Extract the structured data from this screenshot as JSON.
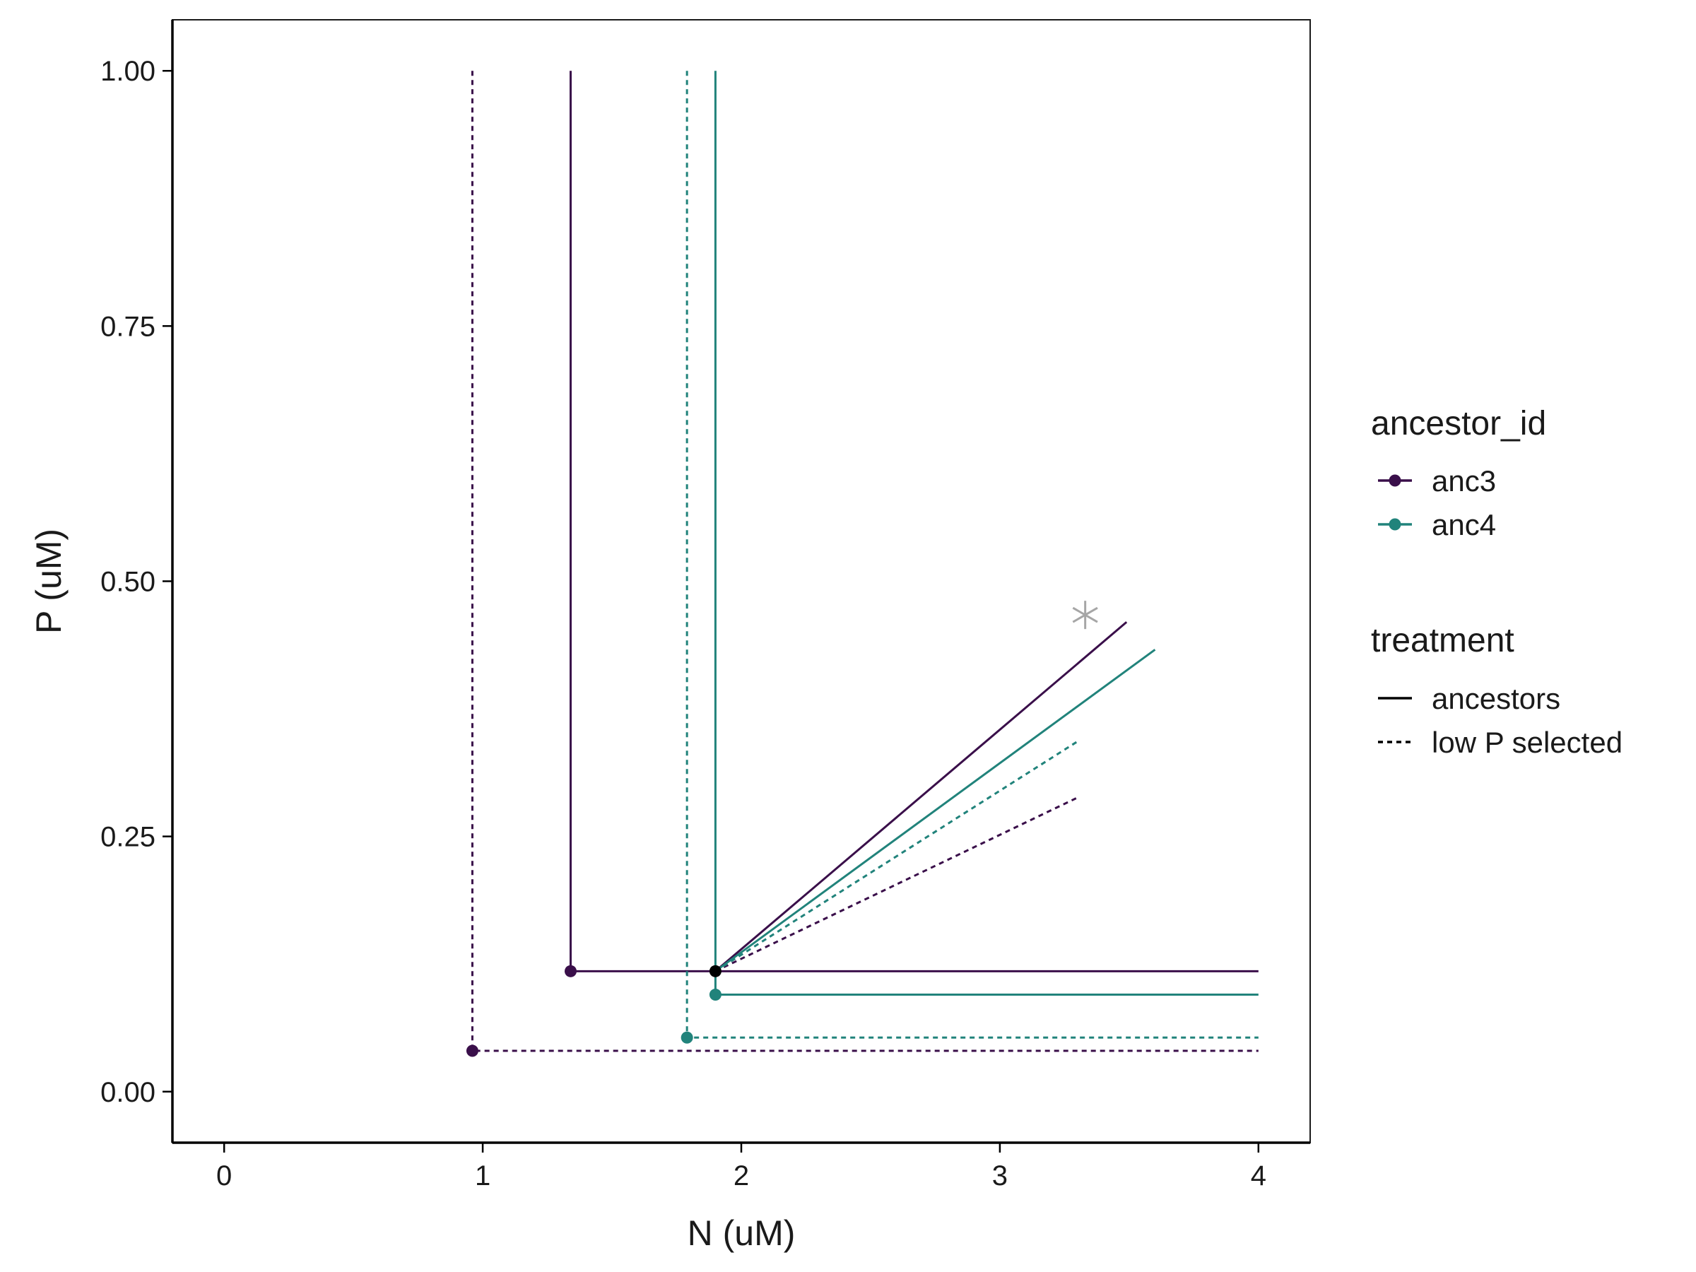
{
  "chart_data": {
    "type": "line",
    "xlabel": "N (uM)",
    "ylabel": "P (uM)",
    "xlim": [
      -0.2,
      4.2
    ],
    "ylim": [
      -0.05,
      1.05
    ],
    "xticks": [
      0,
      1,
      2,
      3,
      4
    ],
    "xtick_labels": [
      "0",
      "1",
      "2",
      "3",
      "4"
    ],
    "yticks": [
      0,
      0.25,
      0.5,
      0.75,
      1.0
    ],
    "ytick_labels": [
      "0.00",
      "0.25",
      "0.50",
      "0.75",
      "1.00"
    ],
    "grid": false,
    "legend_placement": "right",
    "legends": [
      {
        "title": "ancestor_id",
        "entries": [
          {
            "label": "anc3",
            "color": "#3a0f4a"
          },
          {
            "label": "anc4",
            "color": "#21837b"
          }
        ]
      },
      {
        "title": "treatment",
        "entries": [
          {
            "label": "ancestors",
            "dash": "solid"
          },
          {
            "label": "low P selected",
            "dash": "dotted"
          }
        ]
      }
    ],
    "series": [
      {
        "ancestor_id": "anc3",
        "treatment": "ancestors",
        "color": "#3a0f4a",
        "dash": "solid",
        "corner": [
          1.34,
          0.118
        ],
        "x_end": 4.0,
        "y_end": 1.0,
        "slope_end": [
          3.49,
          0.46
        ]
      },
      {
        "ancestor_id": "anc4",
        "treatment": "ancestors",
        "color": "#21837b",
        "dash": "solid",
        "corner": [
          1.9,
          0.095
        ],
        "x_end": 4.0,
        "y_end": 1.0,
        "slope_end": [
          3.6,
          0.433
        ]
      },
      {
        "ancestor_id": "anc3",
        "treatment": "low P selected",
        "color": "#3a0f4a",
        "dash": "dotted",
        "corner": [
          0.96,
          0.04
        ],
        "x_end": 4.0,
        "y_end": 1.0,
        "slope_end": [
          3.3,
          0.288
        ]
      },
      {
        "ancestor_id": "anc4",
        "treatment": "low P selected",
        "color": "#21837b",
        "dash": "dotted",
        "corner": [
          1.79,
          0.053
        ],
        "x_end": 4.0,
        "y_end": 1.0,
        "slope_end": [
          3.3,
          0.343
        ]
      }
    ],
    "intersection_point": {
      "x": 1.9,
      "y": 0.118,
      "color": "#000000"
    },
    "supply_point_marker": {
      "x": 3.33,
      "y": 0.467,
      "shape": "asterisk",
      "color": "#a6a6a6"
    }
  }
}
